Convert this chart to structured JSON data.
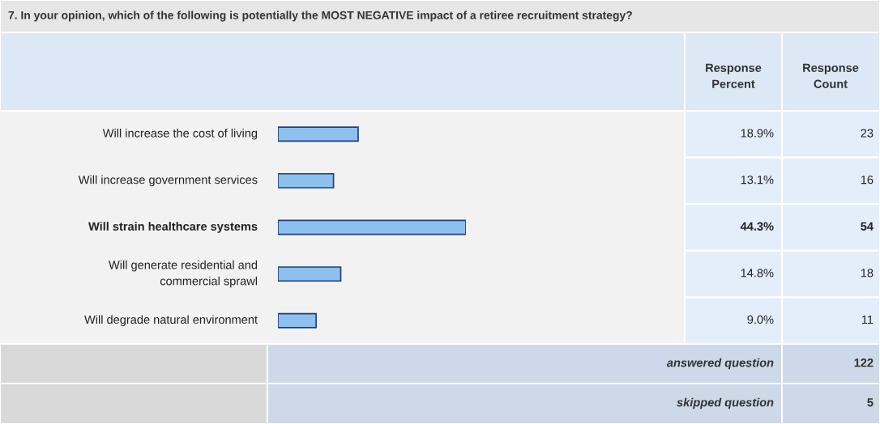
{
  "chart_data": {
    "type": "bar",
    "orientation": "horizontal",
    "title": "7. In your opinion, which of the following is potentially the MOST NEGATIVE impact of a retiree recruitment strategy?",
    "categories": [
      "Will increase the cost of living",
      "Will increase government services",
      "Will strain healthcare systems",
      "Will generate residential and\ncommercial sprawl",
      "Will degrade natural environment"
    ],
    "values": [
      18.9,
      13.1,
      44.3,
      14.8,
      9.0
    ],
    "value_labels": [
      "18.9%",
      "13.1%",
      "44.3%",
      "14.8%",
      "9.0%"
    ],
    "color": "#8cc0ee",
    "tick_labels": false,
    "annotations": [
      "Response\nPercent",
      "Response\nCount",
      "answered question",
      "122",
      "skipped question",
      "5",
      "23",
      "16",
      "54",
      "18",
      "11"
    ]
  }
}
